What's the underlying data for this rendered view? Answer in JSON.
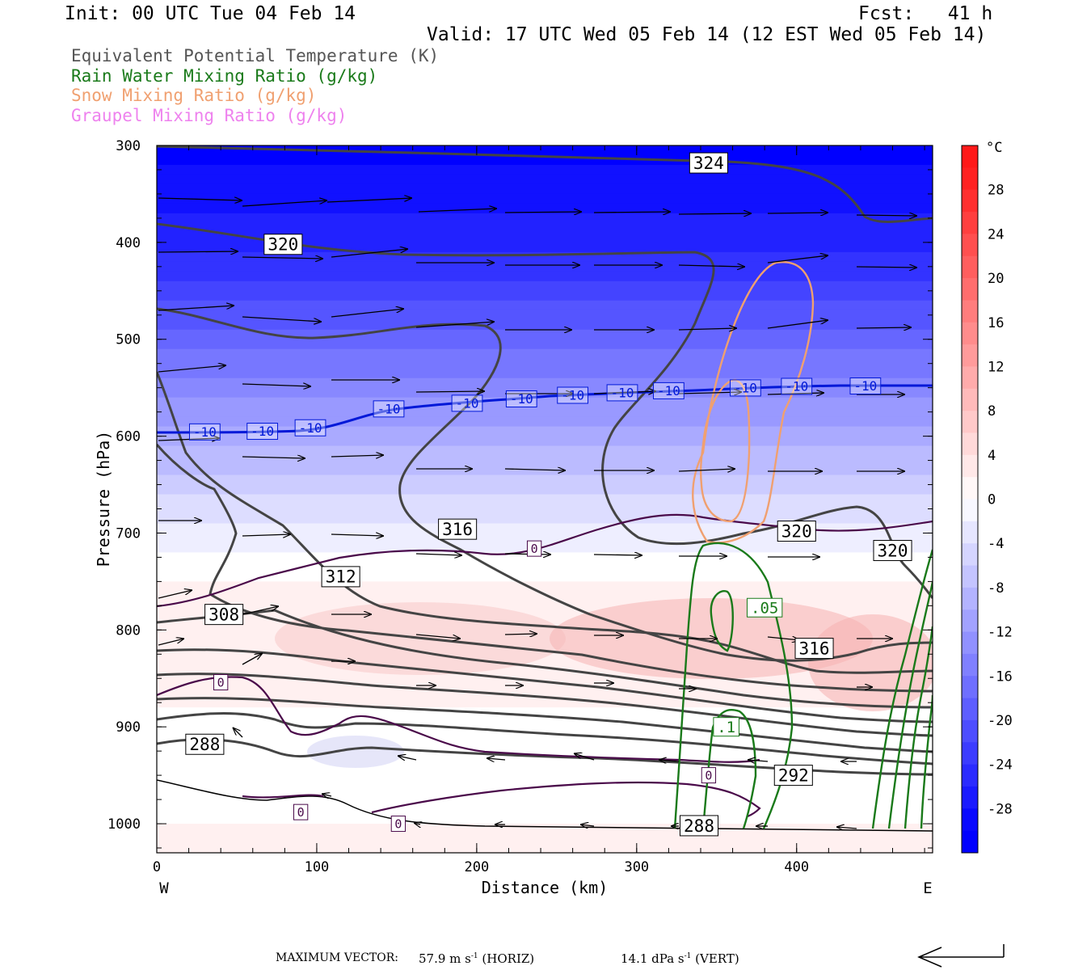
{
  "header": {
    "init": "Init: 00 UTC Tue 04 Feb 14",
    "fcst": "Fcst:   41 h",
    "valid": "Valid: 17 UTC Wed 05 Feb 14 (12 EST Wed 05 Feb 14)"
  },
  "legend": [
    {
      "label": "Equivalent Potential Temperature (K)",
      "color": "#555555"
    },
    {
      "label": "Rain Water Mixing Ratio (g/kg)",
      "color": "#1a7a1a"
    },
    {
      "label": "Snow Mixing Ratio (g/kg)",
      "color": "#f0a070"
    },
    {
      "label": "Graupel Mixing Ratio (g/kg)",
      "color": "#ee82ee"
    }
  ],
  "colorbar": {
    "unit": "°C",
    "ticks": [
      "28",
      "24",
      "20",
      "16",
      "12",
      "8",
      "4",
      "0",
      "-4",
      "-8",
      "-12",
      "-16",
      "-20",
      "-24",
      "-28"
    ]
  },
  "footer": {
    "max_vector_label": "MAXIMUM VECTOR:",
    "horiz_value": "57.9 m s",
    "horiz_unit": "(HORIZ)",
    "vert_value": "14.1 dPa s",
    "vert_unit": "(VERT)",
    "exp": "-1"
  },
  "chart_data": {
    "type": "heatmap",
    "xlabel": "Distance (km)",
    "ylabel": "Pressure (hPa)",
    "x_ticks": [
      0,
      100,
      200,
      300,
      400
    ],
    "y_ticks": [
      300,
      400,
      500,
      600,
      700,
      800,
      900,
      1000
    ],
    "xlim": [
      0,
      485
    ],
    "ylim": [
      1030,
      300
    ],
    "x_left_label": "W",
    "x_right_label": "E",
    "temperature_field_celsius": {
      "description_points": [
        {
          "p": 300,
          "t": -30
        },
        {
          "p": 400,
          "t": -26
        },
        {
          "p": 500,
          "t": -18
        },
        {
          "p": 600,
          "t": -10
        },
        {
          "p": 700,
          "t": -2
        },
        {
          "p": 780,
          "t": 3
        },
        {
          "p": 850,
          "t": 2
        },
        {
          "p": 930,
          "t": -1
        },
        {
          "p": 1000,
          "t": 1
        }
      ]
    },
    "theta_e_contour_labels": [
      {
        "x": 345,
        "p": 318,
        "v": "324"
      },
      {
        "x": 79,
        "p": 402,
        "v": "320"
      },
      {
        "x": 188,
        "p": 696,
        "v": "316"
      },
      {
        "x": 115,
        "p": 745,
        "v": "312"
      },
      {
        "x": 42,
        "p": 784,
        "v": "308"
      },
      {
        "x": 30,
        "p": 918,
        "v": "288"
      },
      {
        "x": 400,
        "p": 698,
        "v": "320"
      },
      {
        "x": 460,
        "p": 718,
        "v": "320"
      },
      {
        "x": 411,
        "p": 819,
        "v": "316"
      },
      {
        "x": 398,
        "p": 950,
        "v": "292"
      },
      {
        "x": 339,
        "p": 1002,
        "v": "288"
      }
    ],
    "isotherm_minus10_labels": [
      {
        "x": 30,
        "v": "-10"
      },
      {
        "x": 66,
        "v": "-10"
      },
      {
        "x": 96,
        "v": "-10"
      },
      {
        "x": 145,
        "v": "-10"
      },
      {
        "x": 194,
        "v": "-10"
      },
      {
        "x": 228,
        "v": "-10"
      },
      {
        "x": 260,
        "v": "-10"
      },
      {
        "x": 291,
        "v": "-10"
      },
      {
        "x": 320,
        "v": "-10"
      },
      {
        "x": 368,
        "v": "-10"
      },
      {
        "x": 400,
        "v": "-10"
      },
      {
        "x": 443,
        "v": "-10"
      }
    ],
    "isotherm_zero_labels": [
      {
        "x": 236,
        "p": 716,
        "v": "0"
      },
      {
        "x": 40,
        "p": 854,
        "v": "0"
      },
      {
        "x": 345,
        "p": 950,
        "v": "0"
      },
      {
        "x": 90,
        "p": 988,
        "v": "0"
      },
      {
        "x": 151,
        "p": 1000,
        "v": "0"
      }
    ],
    "rain_labels": [
      {
        "x": 380,
        "p": 777,
        "v": ".05"
      },
      {
        "x": 356,
        "p": 900,
        "v": ".1"
      }
    ]
  }
}
